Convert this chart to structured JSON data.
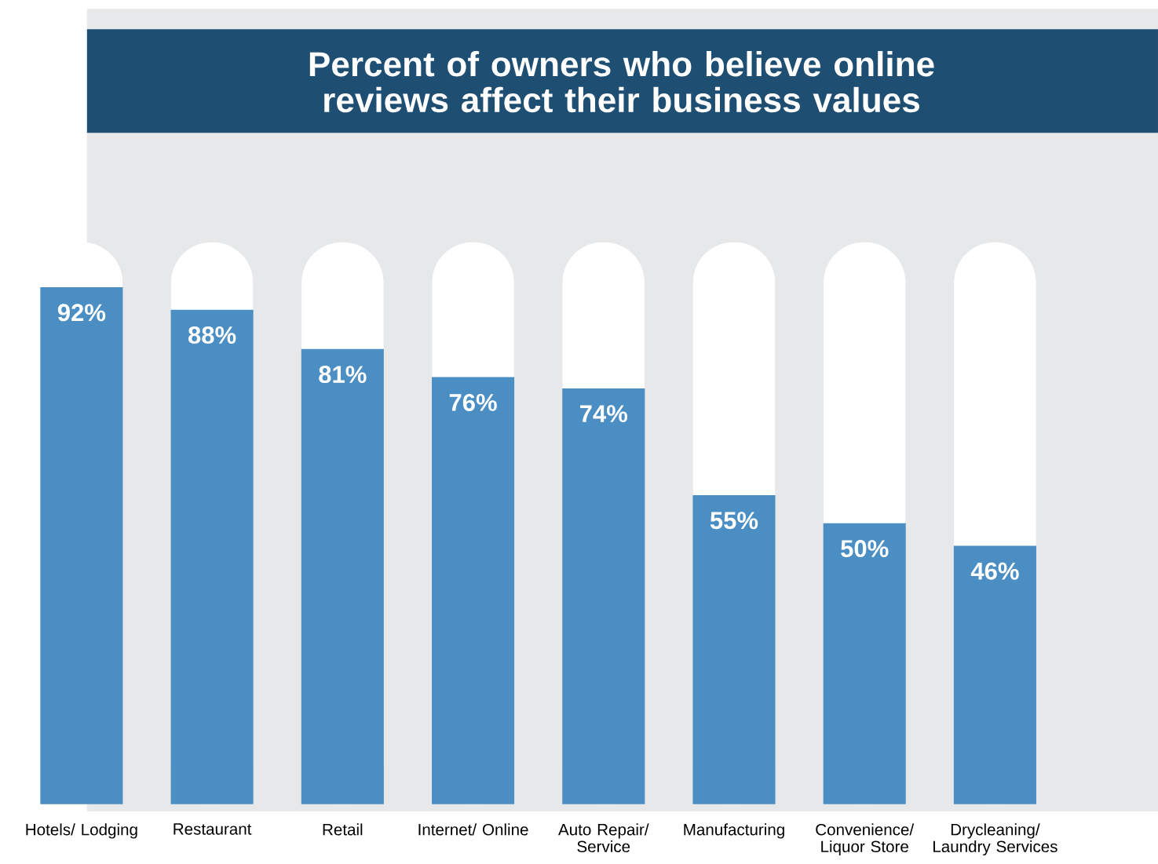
{
  "chart_data": {
    "type": "bar",
    "title": "Percent of owners who believe online reviews affect their business values",
    "categories": [
      "Hotels/ Lodging",
      "Restaurant",
      "Retail",
      "Internet/ Online",
      "Auto Repair/ Service",
      "Manufacturing",
      "Convenience/ Liquor Store",
      "Drycleaning/ Laundry Services"
    ],
    "values": [
      92,
      88,
      81,
      76,
      74,
      55,
      50,
      46
    ],
    "value_labels": [
      "92%",
      "88%",
      "81%",
      "76%",
      "74%",
      "55%",
      "50%",
      "46%"
    ],
    "color": "#4a8ec4",
    "ylim": [
      0,
      100
    ],
    "tick_labels": "x"
  }
}
